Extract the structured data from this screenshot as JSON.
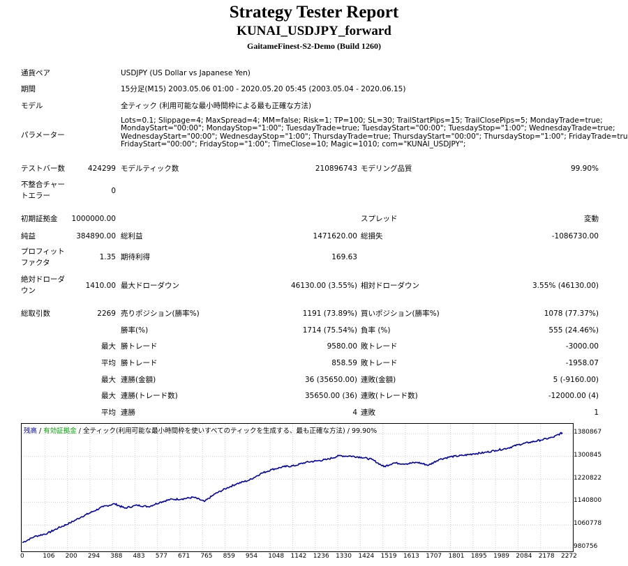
{
  "header": {
    "title": "Strategy Tester Report",
    "subtitle": "KUNAI_USDJPY_forward",
    "server": "GaitameFinest-S2-Demo (Build 1260)"
  },
  "info": {
    "pair_label": "通貨ペア",
    "pair_value": "USDJPY (US Dollar vs Japanese Yen)",
    "period_label": "期間",
    "period_value": "15分足(M15) 2003.05.06 01:00 - 2020.05.20 05:45 (2003.05.04 - 2020.06.15)",
    "model_label": "モデル",
    "model_value": "全ティック (利用可能な最小時間枠による最も正確な方法)",
    "params_label": "パラメーター",
    "params_lines": [
      "Lots=0.1; Slippage=4; MaxSpread=4; MM=false; Risk=1; TP=100; SL=30; TrailStartPips=15; TrailClosePips=5; MondayTrade=true;",
      "MondayStart=\"00:00\"; MondayStop=\"1:00\"; TuesdayTrade=true; TuesdayStart=\"00:00\"; TuesdayStop=\"1:00\"; WednesdayTrade=true;",
      "WednesdayStart=\"00:00\"; WednesdayStop=\"1:00\"; ThursdayTrade=true; ThursdayStart=\"00:00\"; ThursdayStop=\"1:00\"; FridayTrade=true;",
      "FridayStart=\"00:00\"; FridayStop=\"1:00\"; TimeClose=10; Magic=1010; com=\"KUNAI_USDJPY\";"
    ]
  },
  "stats": {
    "bars_label": "テストバー数",
    "bars_value": "424299",
    "ticks_label": "モデルティック数",
    "ticks_value": "210896743",
    "quality_label": "モデリング品質",
    "quality_value": "99.90%",
    "mismatch_label_1": "不整合チャー",
    "mismatch_label_2": "トエラー",
    "mismatch_value": "0",
    "deposit_label": "初期証拠金",
    "deposit_value": "1000000.00",
    "spread_label": "スプレッド",
    "spread_value": "変動",
    "net_label": "純益",
    "net_value": "384890.00",
    "gross_profit_label": "総利益",
    "gross_profit_value": "1471620.00",
    "gross_loss_label": "総損失",
    "gross_loss_value": "-1086730.00",
    "pf_label_1": "プロフィット",
    "pf_label_2": "ファクタ",
    "pf_value": "1.35",
    "expected_label": "期待利得",
    "expected_value": "169.63",
    "abs_dd_label_1": "絶対ドローダ",
    "abs_dd_label_2": "ウン",
    "abs_dd_value": "1410.00",
    "max_dd_label": "最大ドローダウン",
    "max_dd_value": "46130.00 (3.55%)",
    "rel_dd_label": "相対ドローダウン",
    "rel_dd_value": "3.55% (46130.00)",
    "trades_label": "総取引数",
    "trades_value": "2269",
    "short_label": "売りポジション(勝率%)",
    "short_value": "1191 (73.89%)",
    "long_label": "買いポジション(勝率%)",
    "long_value": "1078 (77.37%)",
    "win_label": "勝率(%)",
    "win_value": "1714 (75.54%)",
    "loss_label": "負率 (%)",
    "loss_value": "555 (24.46%)",
    "max_prefix": "最大",
    "avg_prefix": "平均",
    "win_trade_label": "勝トレード",
    "loss_trade_label": "敗トレード",
    "largest_win_value": "9580.00",
    "largest_loss_value": "-3000.00",
    "avg_win_value": "858.59",
    "avg_loss_value": "-1958.07",
    "consec_wins_money_label": "連勝(金額)",
    "consec_wins_money_value": "36 (35650.00)",
    "consec_losses_money_label": "連敗(金額)",
    "consec_losses_money_value": "5 (-9160.00)",
    "consec_wins_count_label": "連勝(トレード数)",
    "consec_wins_count_value": "35650.00 (36)",
    "consec_losses_count_label": "連敗(トレード数)",
    "consec_losses_count_value": "-12000.00 (4)",
    "avg_consec_wins_label": "連勝",
    "avg_consec_wins_value": "4",
    "avg_consec_losses_label": "連敗",
    "avg_consec_losses_value": "1"
  },
  "graph": {
    "legend_balance": "残高",
    "legend_equity": "有効証拠金",
    "legend_rest": " / 全ティック(利用可能な最小時間枠を使いすべてのティックを生成する、最も正確な方法) / 99.90%",
    "balance_color": "#0000aa",
    "equity_color": "#00a000",
    "y_ticks": [
      "1380867",
      "1300845",
      "1220822",
      "1140800",
      "1060778",
      "980756"
    ],
    "x_ticks": [
      "0",
      "106",
      "200",
      "294",
      "388",
      "483",
      "577",
      "671",
      "765",
      "859",
      "954",
      "1048",
      "1142",
      "1236",
      "1330",
      "1424",
      "1519",
      "1613",
      "1707",
      "1801",
      "1895",
      "1989",
      "2084",
      "2178",
      "2272"
    ]
  },
  "chart_data": {
    "type": "line",
    "ylim": [
      980756,
      1380867
    ],
    "xlim": [
      0,
      2272
    ],
    "grid": true,
    "series": [
      {
        "name": "残高",
        "x": [
          0,
          50,
          106,
          150,
          200,
          250,
          294,
          340,
          388,
          430,
          483,
          530,
          577,
          620,
          671,
          720,
          765,
          810,
          859,
          900,
          954,
          1000,
          1048,
          1100,
          1142,
          1190,
          1236,
          1280,
          1330,
          1380,
          1424,
          1470,
          1519,
          1560,
          1613,
          1660,
          1707,
          1750,
          1801,
          1850,
          1895,
          1940,
          1989,
          2040,
          2084,
          2130,
          2178,
          2230,
          2269
        ],
        "y": [
          999000,
          1020000,
          1032000,
          1050000,
          1068000,
          1090000,
          1107000,
          1125000,
          1135000,
          1120000,
          1130000,
          1125000,
          1140000,
          1150000,
          1152000,
          1158000,
          1143000,
          1170000,
          1190000,
          1205000,
          1218000,
          1240000,
          1255000,
          1265000,
          1268000,
          1280000,
          1285000,
          1290000,
          1303000,
          1302000,
          1298000,
          1290000,
          1265000,
          1278000,
          1275000,
          1280000,
          1270000,
          1290000,
          1300000,
          1304000,
          1310000,
          1314000,
          1322000,
          1330000,
          1342000,
          1350000,
          1358000,
          1368000,
          1384000
        ]
      }
    ]
  }
}
